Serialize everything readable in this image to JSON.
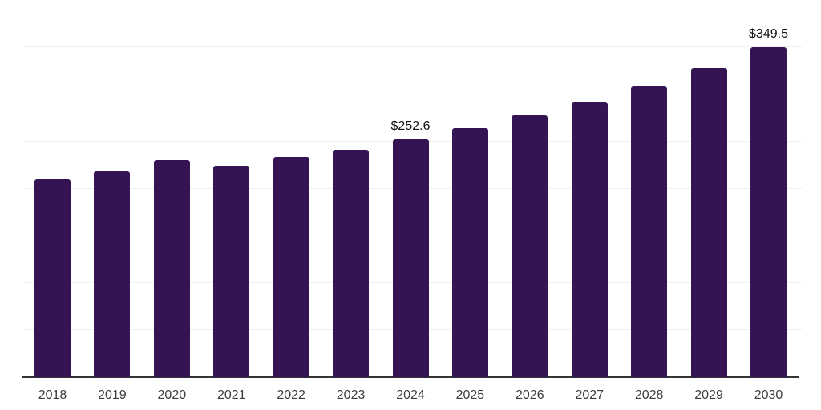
{
  "chart_data": {
    "type": "bar",
    "title": "",
    "xlabel": "",
    "ylabel": "",
    "categories": [
      "2018",
      "2019",
      "2020",
      "2021",
      "2022",
      "2023",
      "2024",
      "2025",
      "2026",
      "2027",
      "2028",
      "2029",
      "2030"
    ],
    "values": [
      210.0,
      218.6,
      230.2,
      224.5,
      233.4,
      241.2,
      252.6,
      264.1,
      277.6,
      291.3,
      308.5,
      327.6,
      349.5
    ],
    "data_labels": {
      "2024": "$252.6",
      "2030": "$349.5"
    },
    "ylim": [
      0,
      400
    ],
    "grid_step": 50,
    "grid": true,
    "legend_position": "none",
    "bar_color": "#341452",
    "axis_color": "#333333",
    "grid_color": "#efefef",
    "data_label_color": "#111111",
    "tick_label_color": "#3c3c3c",
    "background_color": "#ffffff"
  }
}
